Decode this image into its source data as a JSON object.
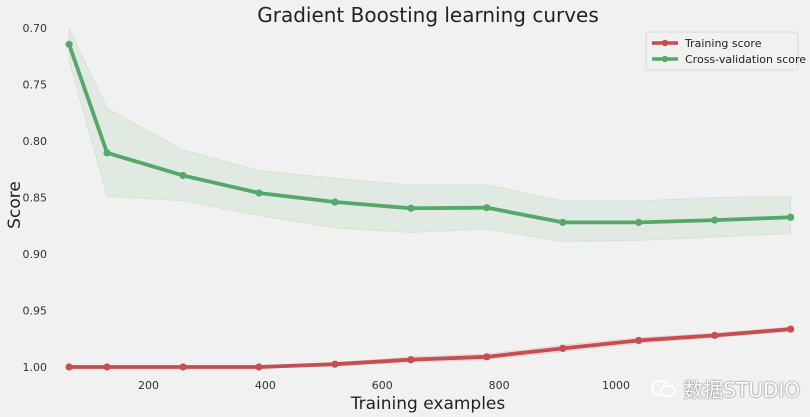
{
  "chart_data": {
    "type": "line",
    "title": "Gradient Boosting learning curves",
    "xlabel": "Training examples",
    "ylabel": "Score",
    "x": [
      64,
      129,
      259,
      389,
      519,
      649,
      779,
      909,
      1039,
      1169,
      1299
    ],
    "xlim": [
      45,
      1315
    ],
    "xticks": [
      200,
      400,
      600,
      800,
      1000
    ],
    "xtick_labels": [
      "200",
      "400",
      "600",
      "800",
      "1000"
    ],
    "ylim": [
      1.0,
      0.7
    ],
    "yticks": [
      0.7,
      0.75,
      0.8,
      0.85,
      0.9,
      0.95,
      1.0
    ],
    "ytick_labels": [
      "0.70",
      "0.75",
      "0.80",
      "0.85",
      "0.90",
      "0.95",
      "1.00"
    ],
    "inverted_y": true,
    "grid": false,
    "legend_position": "top-right",
    "series": [
      {
        "name": "Training score",
        "color": "#c44e52",
        "values": [
          1.0,
          1.0,
          1.0,
          1.0,
          0.9975,
          0.9935,
          0.991,
          0.9835,
          0.9765,
          0.972,
          0.9665
        ],
        "band_low": [
          1.0,
          1.0,
          1.0,
          1.0,
          0.999,
          0.996,
          0.9935,
          0.9865,
          0.979,
          0.974,
          0.9685
        ],
        "band_high": [
          1.0,
          1.0,
          1.0,
          1.0,
          0.996,
          0.991,
          0.9885,
          0.9805,
          0.974,
          0.97,
          0.9645
        ]
      },
      {
        "name": "Cross-validation score",
        "color": "#55a868",
        "values": [
          0.7145,
          0.8105,
          0.8305,
          0.846,
          0.854,
          0.8595,
          0.859,
          0.872,
          0.872,
          0.87,
          0.8675
        ],
        "band_low": [
          0.7,
          0.771,
          0.808,
          0.826,
          0.833,
          0.839,
          0.839,
          0.853,
          0.853,
          0.85,
          0.849
        ],
        "band_high": [
          0.729,
          0.849,
          0.853,
          0.866,
          0.877,
          0.881,
          0.878,
          0.889,
          0.888,
          0.885,
          0.882
        ]
      }
    ]
  },
  "watermark": {
    "text": "数据STUDIO"
  }
}
